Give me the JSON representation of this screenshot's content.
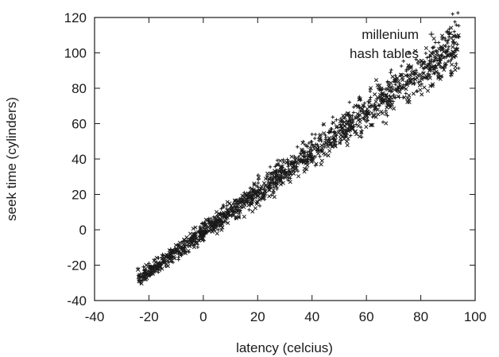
{
  "chart_data": {
    "type": "scatter",
    "title": "",
    "xlabel": "latency (celcius)",
    "ylabel": "seek time (cylinders)",
    "xlim": [
      -40,
      100
    ],
    "ylim": [
      -40,
      120
    ],
    "xticks": [
      -40,
      -20,
      0,
      20,
      40,
      60,
      80,
      100
    ],
    "yticks": [
      -40,
      -20,
      0,
      20,
      40,
      60,
      80,
      100,
      120
    ],
    "grid": false,
    "legend": {
      "placement": "top-right",
      "entries": [
        {
          "label": "millenium",
          "marker": "+"
        },
        {
          "label": "hash tables",
          "marker": "x"
        }
      ]
    },
    "series": [
      {
        "name": "millenium",
        "marker": "+",
        "color": "#1a1a1a",
        "x_range": [
          -24,
          94
        ],
        "trend": {
          "slope": 1.15,
          "intercept": -1
        },
        "spread_at_low_x": 1.5,
        "spread_at_high_x": 7,
        "values": [
          [
            -24,
            -22
          ],
          [
            -22,
            -21
          ],
          [
            -20,
            -19
          ],
          [
            -18,
            -17
          ],
          [
            -15,
            -14
          ],
          [
            -12,
            -11
          ],
          [
            -9,
            -8.5
          ],
          [
            -6,
            -6
          ],
          [
            -3,
            -3.5
          ],
          [
            0,
            -1
          ],
          [
            3,
            2.5
          ],
          [
            6,
            6
          ],
          [
            9,
            9.5
          ],
          [
            12,
            13
          ],
          [
            15,
            16.5
          ],
          [
            18,
            20
          ],
          [
            21,
            23
          ],
          [
            24,
            27
          ],
          [
            27,
            30
          ],
          [
            30,
            33
          ],
          [
            33,
            37
          ],
          [
            36,
            40
          ],
          [
            39,
            44
          ],
          [
            42,
            48
          ],
          [
            45,
            51
          ],
          [
            48,
            55
          ],
          [
            51,
            58
          ],
          [
            54,
            61
          ],
          [
            57,
            64
          ],
          [
            60,
            67
          ],
          [
            63,
            71
          ],
          [
            66,
            74
          ],
          [
            69,
            78
          ],
          [
            72,
            81
          ],
          [
            75,
            84
          ],
          [
            78,
            88
          ],
          [
            81,
            91
          ],
          [
            84,
            95
          ],
          [
            87,
            98
          ],
          [
            90,
            102
          ],
          [
            92,
            106
          ],
          [
            94,
            109
          ]
        ]
      },
      {
        "name": "hash tables",
        "marker": "x",
        "color": "#1a1a1a",
        "x_range": [
          -24,
          94
        ],
        "trend": {
          "slope": 1.12,
          "intercept": -1.5
        },
        "spread_at_low_x": 1.5,
        "spread_at_high_x": 7,
        "values": [
          [
            -24,
            -22.5
          ],
          [
            -21,
            -20
          ],
          [
            -18,
            -17.5
          ],
          [
            -15,
            -15
          ],
          [
            -12,
            -12
          ],
          [
            -9,
            -9.5
          ],
          [
            -6,
            -7
          ],
          [
            -3,
            -4
          ],
          [
            0,
            -1.5
          ],
          [
            3,
            2
          ],
          [
            6,
            5
          ],
          [
            9,
            8.5
          ],
          [
            12,
            12
          ],
          [
            15,
            15
          ],
          [
            18,
            18.5
          ],
          [
            21,
            22
          ],
          [
            24,
            25
          ],
          [
            27,
            28.5
          ],
          [
            30,
            32
          ],
          [
            33,
            35
          ],
          [
            36,
            38.5
          ],
          [
            39,
            42
          ],
          [
            42,
            45.5
          ],
          [
            45,
            49
          ],
          [
            48,
            52
          ],
          [
            51,
            55.5
          ],
          [
            54,
            58.5
          ],
          [
            57,
            62
          ],
          [
            60,
            65
          ],
          [
            63,
            68.5
          ],
          [
            66,
            72
          ],
          [
            69,
            75
          ],
          [
            72,
            78.5
          ],
          [
            75,
            82
          ],
          [
            78,
            85
          ],
          [
            81,
            88.5
          ],
          [
            84,
            92
          ],
          [
            87,
            95
          ],
          [
            90,
            98.5
          ],
          [
            93,
            102
          ]
        ]
      }
    ]
  }
}
